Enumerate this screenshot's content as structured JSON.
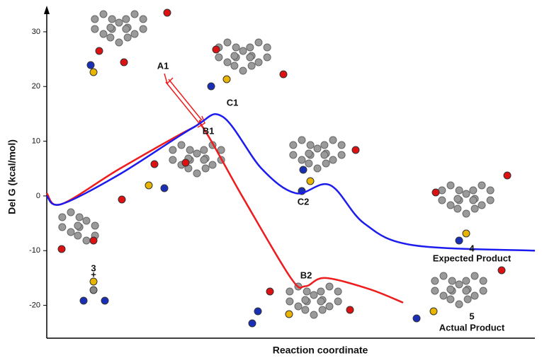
{
  "chart_data": {
    "type": "line",
    "y_label": "Del G (kcal/mol)",
    "x_label": "Reaction coordinate",
    "xlim": [
      0,
      100
    ],
    "ylim": [
      -26,
      34
    ],
    "yticks": [
      30,
      20,
      10,
      0,
      -10,
      -20
    ],
    "series": [
      {
        "color": "#ee1c1c",
        "x": [
          0,
          3,
          15,
          30,
          32,
          40,
          50,
          53,
          57,
          66,
          73
        ],
        "values": [
          0.5,
          -1.5,
          5,
          12.5,
          12.5,
          0,
          -15,
          -16.5,
          -15,
          -17,
          -19.5
        ]
      },
      {
        "color": "#1c1cee",
        "x": [
          0,
          3,
          15,
          30,
          36,
          44,
          51,
          58,
          65,
          75,
          100
        ],
        "values": [
          0,
          -1.5,
          4,
          12.5,
          14.5,
          5,
          0.5,
          2,
          -5,
          -9,
          -10
        ]
      }
    ],
    "annotations": [
      "A1",
      "B1",
      "C1",
      "C2",
      "B2",
      "3",
      "+",
      "4",
      "Expected Product",
      "5",
      "Actual Product"
    ]
  }
}
